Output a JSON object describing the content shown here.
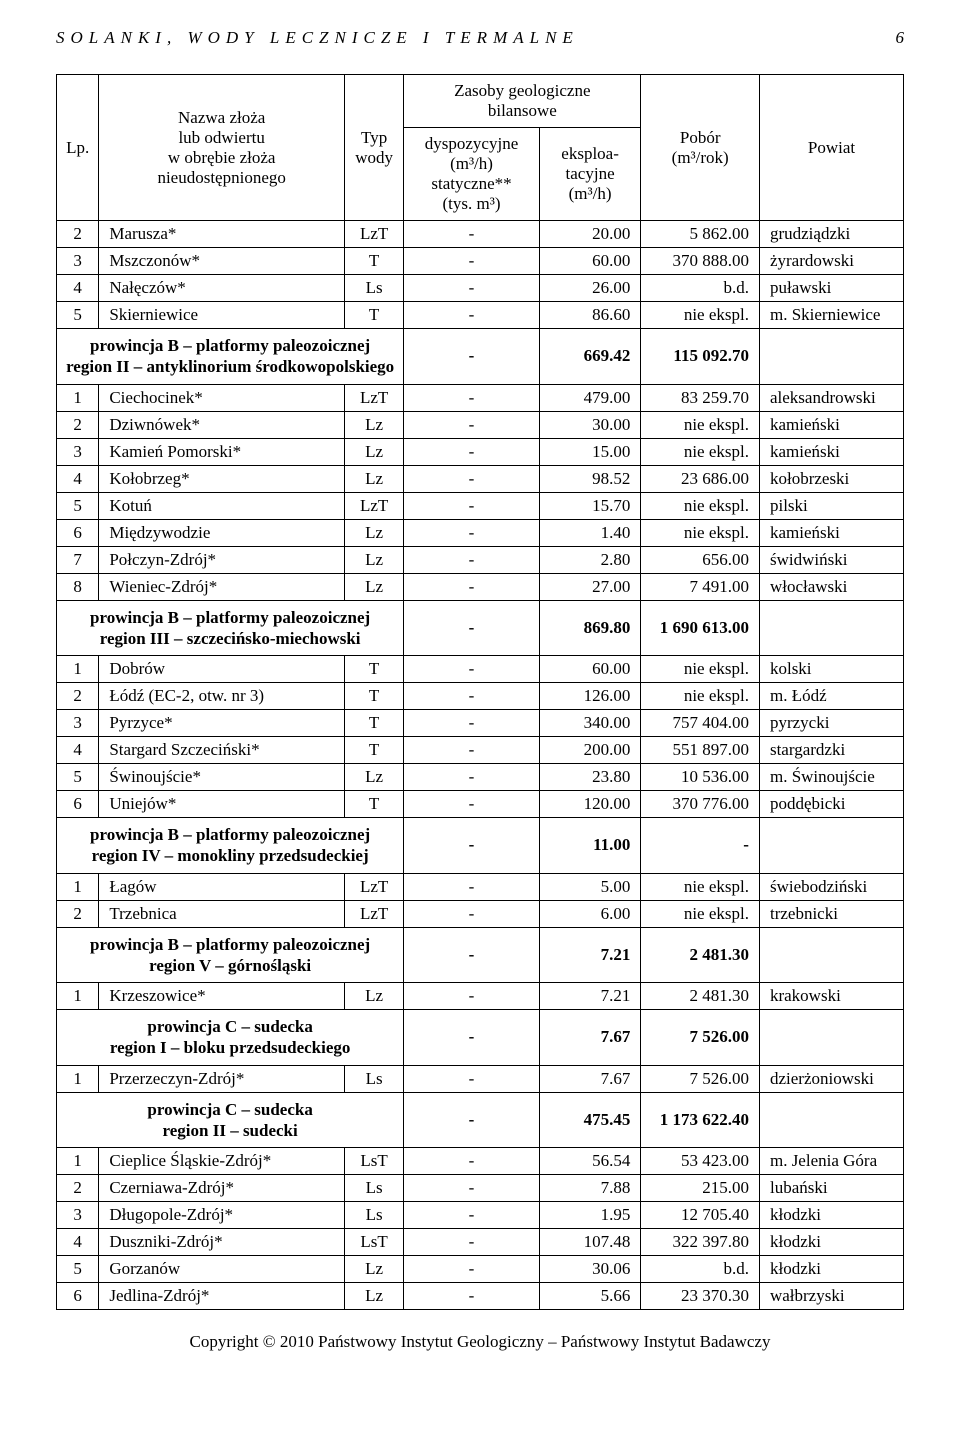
{
  "runningHead": {
    "title": "SOLANKI, WODY LECZNICZE I TERMALNE",
    "page": "6"
  },
  "header": {
    "lp": "Lp.",
    "name": "Nazwa złoża\nlub odwiertu\nw obrębie złoża\nnieudostępnionego",
    "typ": "Typ\nwody",
    "zasoby": "Zasoby geologiczne\nbilansowe",
    "dys": "dyspozycyjne\n(m³/h)\nstatyczne**\n(tys. m³)",
    "eks": "eksploa-\ntacyjne\n(m³/h)",
    "pob": "Pobór\n(m³/rok)",
    "pow": "Powiat"
  },
  "blocks": [
    {
      "type": "row",
      "lp": "2",
      "name": "Marusza*",
      "typ": "LzT",
      "dys": "-",
      "eks": "20.00",
      "pob": "5 862.00",
      "pow": "grudziądzki"
    },
    {
      "type": "row",
      "lp": "3",
      "name": "Mszczonów*",
      "typ": "T",
      "dys": "-",
      "eks": "60.00",
      "pob": "370 888.00",
      "pow": "żyrardowski"
    },
    {
      "type": "row",
      "lp": "4",
      "name": "Nałęczów*",
      "typ": "Ls",
      "dys": "-",
      "eks": "26.00",
      "pob": "b.d.",
      "pow": "puławski"
    },
    {
      "type": "row",
      "lp": "5",
      "name": "Skierniewice",
      "typ": "T",
      "dys": "-",
      "eks": "86.60",
      "pob": "nie ekspl.",
      "pow": "m. Skierniewice"
    },
    {
      "type": "section",
      "label": "prowincja B – platformy paleozoicznej\nregion II – antyklinorium środkowopolskiego",
      "dys": "-",
      "eks": "669.42",
      "pob": "115 092.70",
      "pow": "",
      "showPow": false
    },
    {
      "type": "row",
      "lp": "1",
      "name": "Ciechocinek*",
      "typ": "LzT",
      "dys": "-",
      "eks": "479.00",
      "pob": "83 259.70",
      "pow": "aleksandrowski"
    },
    {
      "type": "row",
      "lp": "2",
      "name": "Dziwnówek*",
      "typ": "Lz",
      "dys": "-",
      "eks": "30.00",
      "pob": "nie ekspl.",
      "pow": "kamieński"
    },
    {
      "type": "row",
      "lp": "3",
      "name": "Kamień Pomorski*",
      "typ": "Lz",
      "dys": "-",
      "eks": "15.00",
      "pob": "nie ekspl.",
      "pow": "kamieński"
    },
    {
      "type": "row",
      "lp": "4",
      "name": "Kołobrzeg*",
      "typ": "Lz",
      "dys": "-",
      "eks": "98.52",
      "pob": "23 686.00",
      "pow": "kołobrzeski"
    },
    {
      "type": "row",
      "lp": "5",
      "name": "Kotuń",
      "typ": "LzT",
      "dys": "-",
      "eks": "15.70",
      "pob": "nie ekspl.",
      "pow": "pilski"
    },
    {
      "type": "row",
      "lp": "6",
      "name": "Międzywodzie",
      "typ": "Lz",
      "dys": "-",
      "eks": "1.40",
      "pob": "nie ekspl.",
      "pow": "kamieński"
    },
    {
      "type": "row",
      "lp": "7",
      "name": "Połczyn-Zdrój*",
      "typ": "Lz",
      "dys": "-",
      "eks": "2.80",
      "pob": "656.00",
      "pow": "świdwiński"
    },
    {
      "type": "row",
      "lp": "8",
      "name": "Wieniec-Zdrój*",
      "typ": "Lz",
      "dys": "-",
      "eks": "27.00",
      "pob": "7 491.00",
      "pow": "włocławski"
    },
    {
      "type": "section",
      "label": "prowincja B – platformy paleozoicznej\nregion III – szczecińsko-miechowski",
      "dys": "-",
      "eks": "869.80",
      "pob": "1 690 613.00",
      "pow": "",
      "showPow": false
    },
    {
      "type": "row",
      "lp": "1",
      "name": "Dobrów",
      "typ": "T",
      "dys": "-",
      "eks": "60.00",
      "pob": "nie ekspl.",
      "pow": "kolski"
    },
    {
      "type": "row",
      "lp": "2",
      "name": "Łódź (EC-2, otw. nr 3)",
      "typ": "T",
      "dys": "-",
      "eks": "126.00",
      "pob": "nie ekspl.",
      "pow": "m. Łódź"
    },
    {
      "type": "row",
      "lp": "3",
      "name": "Pyrzyce*",
      "typ": "T",
      "dys": "-",
      "eks": "340.00",
      "pob": "757 404.00",
      "pow": "pyrzycki"
    },
    {
      "type": "row",
      "lp": "4",
      "name": "Stargard Szczeciński*",
      "typ": "T",
      "dys": "-",
      "eks": "200.00",
      "pob": "551 897.00",
      "pow": "stargardzki"
    },
    {
      "type": "row",
      "lp": "5",
      "name": "Świnoujście*",
      "typ": "Lz",
      "dys": "-",
      "eks": "23.80",
      "pob": "10 536.00",
      "pow": "m. Świnoujście"
    },
    {
      "type": "row",
      "lp": "6",
      "name": "Uniejów*",
      "typ": "T",
      "dys": "-",
      "eks": "120.00",
      "pob": "370 776.00",
      "pow": "poddębicki"
    },
    {
      "type": "section",
      "label": "prowincja B – platformy paleozoicznej\nregion IV – monokliny przedsudeckiej",
      "dys": "-",
      "eks": "11.00",
      "pob": "-",
      "pow": "",
      "showPow": false
    },
    {
      "type": "row",
      "lp": "1",
      "name": "Łagów",
      "typ": "LzT",
      "dys": "-",
      "eks": "5.00",
      "pob": "nie ekspl.",
      "pow": "świebodziński"
    },
    {
      "type": "row",
      "lp": "2",
      "name": "Trzebnica",
      "typ": "LzT",
      "dys": "-",
      "eks": "6.00",
      "pob": "nie ekspl.",
      "pow": "trzebnicki"
    },
    {
      "type": "section",
      "label": "prowincja B – platformy paleozoicznej\nregion V – górnośląski",
      "dys": "-",
      "eks": "7.21",
      "pob": "2 481.30",
      "pow": "",
      "showPow": false
    },
    {
      "type": "row",
      "lp": "1",
      "name": "Krzeszowice*",
      "typ": "Lz",
      "dys": "-",
      "eks": "7.21",
      "pob": "2 481.30",
      "pow": "krakowski"
    },
    {
      "type": "section",
      "label": "prowincja C – sudecka\nregion I – bloku przedsudeckiego",
      "dys": "-",
      "eks": "7.67",
      "pob": "7 526.00",
      "pow": "",
      "showPow": false
    },
    {
      "type": "row",
      "lp": "1",
      "name": "Przerzeczyn-Zdrój*",
      "typ": "Ls",
      "dys": "-",
      "eks": "7.67",
      "pob": "7 526.00",
      "pow": "dzierżoniowski"
    },
    {
      "type": "section",
      "label": "prowincja C – sudecka\nregion II – sudecki",
      "dys": "-",
      "eks": "475.45",
      "pob": "1 173 622.40",
      "pow": "",
      "showPow": false
    },
    {
      "type": "row",
      "lp": "1",
      "name": "Cieplice Śląskie-Zdrój*",
      "typ": "LsT",
      "dys": "-",
      "eks": "56.54",
      "pob": "53 423.00",
      "pow": "m. Jelenia Góra"
    },
    {
      "type": "row",
      "lp": "2",
      "name": "Czerniawa-Zdrój*",
      "typ": "Ls",
      "dys": "-",
      "eks": "7.88",
      "pob": "215.00",
      "pow": "lubański"
    },
    {
      "type": "row",
      "lp": "3",
      "name": "Długopole-Zdrój*",
      "typ": "Ls",
      "dys": "-",
      "eks": "1.95",
      "pob": "12 705.40",
      "pow": "kłodzki"
    },
    {
      "type": "row",
      "lp": "4",
      "name": "Duszniki-Zdrój*",
      "typ": "LsT",
      "dys": "-",
      "eks": "107.48",
      "pob": "322 397.80",
      "pow": "kłodzki"
    },
    {
      "type": "row",
      "lp": "5",
      "name": "Gorzanów",
      "typ": "Lz",
      "dys": "-",
      "eks": "30.06",
      "pob": "b.d.",
      "pow": "kłodzki"
    },
    {
      "type": "row",
      "lp": "6",
      "name": "Jedlina-Zdrój*",
      "typ": "Lz",
      "dys": "-",
      "eks": "5.66",
      "pob": "23 370.30",
      "pow": "wałbrzyski"
    }
  ],
  "footer": "Copyright © 2010 Państwowy Instytut Geologiczny – Państwowy Instytut Badawczy"
}
